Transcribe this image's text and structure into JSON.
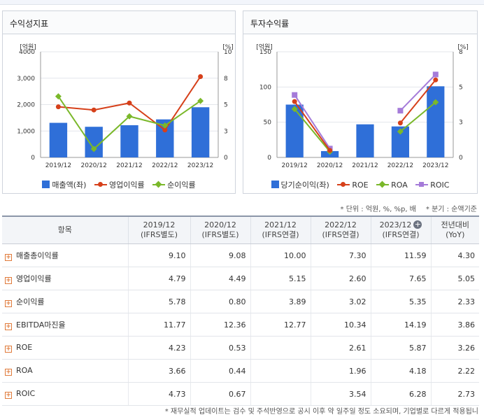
{
  "colors": {
    "bar": "#2f6fd8",
    "op_margin": "#d6401a",
    "net_margin": "#7ab82a",
    "roe": "#d6401a",
    "roa": "#7ab82a",
    "roic": "#a57bd9"
  },
  "chart_data": [
    {
      "type": "bar",
      "title": "수익성지표",
      "left_unit": "[억원]",
      "right_unit": "[%]",
      "categories": [
        "2019/12",
        "2020/12",
        "2021/12",
        "2022/12",
        "2023/12"
      ],
      "ylim_left": [
        0,
        4000
      ],
      "ylim_right": [
        0,
        10
      ],
      "y_ticks_left": [
        "0",
        "1,000",
        "2,000",
        "3,000",
        "4000"
      ],
      "y_ticks_right": [
        "0",
        "3",
        "5",
        "8",
        "10"
      ],
      "grid": true,
      "legend": "bottom",
      "bars": {
        "name": "매출액(좌)",
        "values": [
          1310,
          1160,
          1220,
          1440,
          1900
        ]
      },
      "series": [
        {
          "name": "영업이익률",
          "values": [
            4.79,
            4.49,
            5.15,
            2.6,
            7.65
          ],
          "marker": "circle"
        },
        {
          "name": "순이익률",
          "values": [
            5.78,
            0.8,
            3.89,
            3.02,
            5.35
          ],
          "marker": "diamond"
        }
      ]
    },
    {
      "type": "bar",
      "title": "투자수익률",
      "left_unit": "[억원]",
      "right_unit": "[%]",
      "categories": [
        "2019/12",
        "2020/12",
        "2021/12",
        "2022/12",
        "2023/12"
      ],
      "ylim_left": [
        0,
        150
      ],
      "ylim_right": [
        0,
        8
      ],
      "y_ticks_left": [
        "0",
        "50",
        "100",
        "150"
      ],
      "y_ticks_right": [
        "0",
        "3",
        "5",
        "8"
      ],
      "grid": true,
      "legend": "bottom",
      "bars": {
        "name": "당기순이익(좌)",
        "values": [
          75,
          9,
          47,
          44,
          101
        ]
      },
      "series": [
        {
          "name": "ROE",
          "values": [
            4.23,
            0.53,
            null,
            2.61,
            5.87
          ],
          "marker": "circle"
        },
        {
          "name": "ROA",
          "values": [
            3.66,
            0.44,
            null,
            1.96,
            4.18
          ],
          "marker": "diamond"
        },
        {
          "name": "ROIC",
          "values": [
            4.73,
            0.67,
            null,
            3.54,
            6.28
          ],
          "marker": "square"
        }
      ]
    }
  ],
  "unit_note": "* 단위 : 억원, %, %p, 배",
  "period_note": "* 분기 : 순액기준",
  "table": {
    "headers": [
      {
        "line1": "항목",
        "line2": ""
      },
      {
        "line1": "2019/12",
        "line2": "(IFRS별도)"
      },
      {
        "line1": "2020/12",
        "line2": "(IFRS별도)"
      },
      {
        "line1": "2021/12",
        "line2": "(IFRS연결)"
      },
      {
        "line1": "2022/12",
        "line2": "(IFRS연결)"
      },
      {
        "line1": "2023/12",
        "line2": "(IFRS연결)"
      },
      {
        "line1": "전년대비",
        "line2": "(YoY)"
      }
    ],
    "rows": [
      {
        "label": "매출총이익률",
        "values": [
          "9.10",
          "9.08",
          "10.00",
          "7.30",
          "11.59",
          "4.30"
        ]
      },
      {
        "label": "영업이익률",
        "values": [
          "4.79",
          "4.49",
          "5.15",
          "2.60",
          "7.65",
          "5.05"
        ]
      },
      {
        "label": "순이익률",
        "values": [
          "5.78",
          "0.80",
          "3.89",
          "3.02",
          "5.35",
          "2.33"
        ]
      },
      {
        "label": "EBITDA마진율",
        "values": [
          "11.77",
          "12.36",
          "12.77",
          "10.34",
          "14.19",
          "3.86"
        ]
      },
      {
        "label": "ROE",
        "values": [
          "4.23",
          "0.53",
          "",
          "2.61",
          "5.87",
          "3.26"
        ]
      },
      {
        "label": "ROA",
        "values": [
          "3.66",
          "0.44",
          "",
          "1.96",
          "4.18",
          "2.22"
        ]
      },
      {
        "label": "ROIC",
        "values": [
          "4.73",
          "0.67",
          "",
          "3.54",
          "6.28",
          "2.73"
        ]
      }
    ]
  },
  "footnote": "* 재무실적 업데이트는 검수 및 주석반영으로 공시 이후 약 일주일 정도 소요되며, 기업별로 다르게 적용됩니"
}
